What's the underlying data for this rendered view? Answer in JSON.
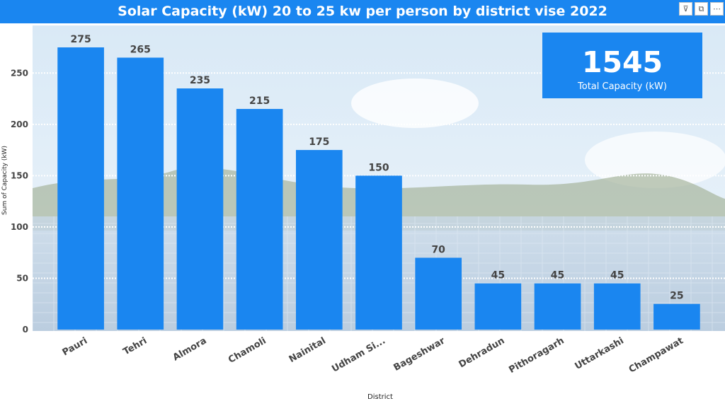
{
  "header": {
    "title": "Solar Capacity (kW) 20 to 25 kw per person by district vise 2022",
    "toolbar": [
      {
        "name": "filter-icon",
        "glyph": "⊽"
      },
      {
        "name": "focus-mode-icon",
        "glyph": "⧉"
      },
      {
        "name": "more-options-icon",
        "glyph": "⋯"
      }
    ]
  },
  "kpi": {
    "value": "1545",
    "label": "Total Capacity (kW)"
  },
  "colors": {
    "bar": "#1a86f0",
    "title_bg": "#1a86f0",
    "kpi_bg": "#1a86f0"
  },
  "chart_data": {
    "type": "bar",
    "categories": [
      "Pauri",
      "Tehri",
      "Almora",
      "Chamoli",
      "Nainital",
      "Udham Si...",
      "Bageshwar",
      "Dehradun",
      "Pithoragarh",
      "Uttarkashi",
      "Champawat"
    ],
    "values": [
      275,
      265,
      235,
      215,
      175,
      150,
      70,
      45,
      45,
      45,
      25
    ],
    "title": "Solar Capacity (kW) 20 to 25 kw per person by district vise 2022",
    "xlabel": "District",
    "ylabel": "Sum of Capacity (kW)",
    "ylim": [
      0,
      275
    ],
    "yticks": [
      0,
      50,
      100,
      150,
      200,
      250
    ],
    "grid": true,
    "data_labels": true
  }
}
